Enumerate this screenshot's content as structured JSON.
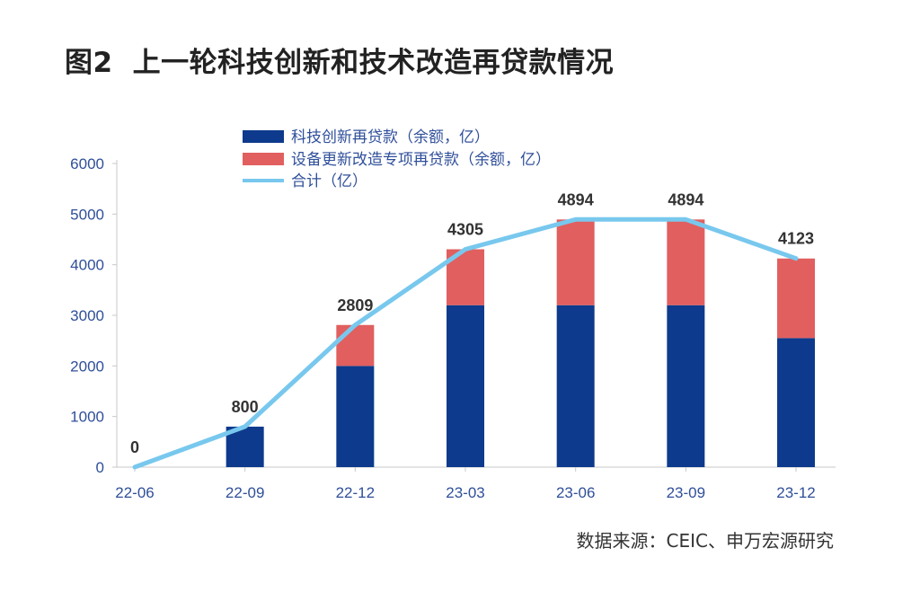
{
  "figure": {
    "number": "图2",
    "title": "上一轮科技创新和技术改造再贷款情况",
    "source": "数据来源：CEIC、申万宏源研究"
  },
  "chart_data": {
    "type": "bar",
    "stacked": true,
    "categories": [
      "22-06",
      "22-09",
      "22-12",
      "23-03",
      "23-06",
      "23-09",
      "23-12"
    ],
    "series": [
      {
        "name": "科技创新再贷款（余额，亿）",
        "kind": "bar",
        "color": "#0d3a8c",
        "values": [
          0,
          800,
          2000,
          3200,
          3200,
          3200,
          2550
        ]
      },
      {
        "name": "设备更新改造专项再贷款（余额，亿）",
        "kind": "bar",
        "color": "#e15f5f",
        "values": [
          0,
          0,
          809,
          1105,
          1694,
          1694,
          1573
        ]
      },
      {
        "name": "合计（亿）",
        "kind": "line",
        "color": "#78c8ee",
        "values": [
          0,
          800,
          2809,
          4305,
          4894,
          4894,
          4123
        ]
      }
    ],
    "data_labels": [
      "0",
      "800",
      "2809",
      "4305",
      "4894",
      "4894",
      "4123"
    ],
    "y_ticks": [
      0,
      1000,
      2000,
      3000,
      4000,
      5000,
      6000
    ],
    "ylim": [
      0,
      6000
    ],
    "grid": false,
    "legend_position": "top"
  }
}
